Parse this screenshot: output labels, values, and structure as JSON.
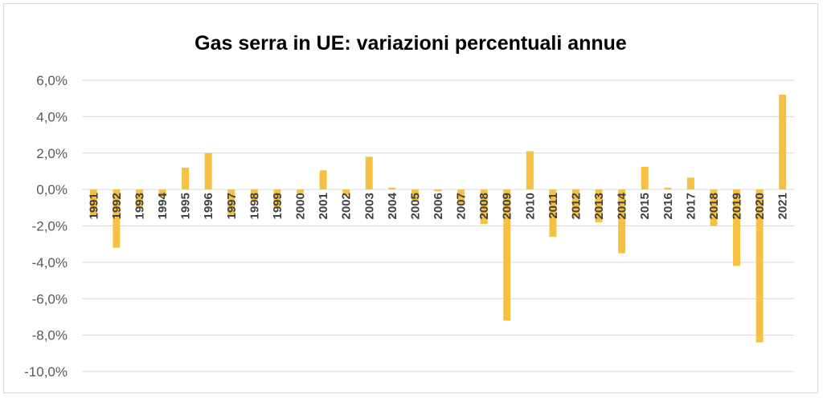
{
  "chart_data": {
    "type": "bar",
    "title": "Gas serra in UE: variazioni percentuali annue",
    "xlabel": "",
    "ylabel": "",
    "ylim": [
      -10,
      6
    ],
    "yticks": [
      "6,0%",
      "4,0%",
      "2,0%",
      "0,0%",
      "-2,0%",
      "-4,0%",
      "-6,0%",
      "-8,0%",
      "-10,0%"
    ],
    "ytick_values": [
      6,
      4,
      2,
      0,
      -2,
      -4,
      -6,
      -8,
      -10
    ],
    "grid": true,
    "legend": "none",
    "bar_color": "#F6C142",
    "categories": [
      "1991",
      "1992",
      "1993",
      "1994",
      "1995",
      "1996",
      "1997",
      "1998",
      "1999",
      "2000",
      "2001",
      "2002",
      "2003",
      "2004",
      "2005",
      "2006",
      "2007",
      "2008",
      "2009",
      "2010",
      "2011",
      "2012",
      "2013",
      "2014",
      "2015",
      "2016",
      "2017",
      "2018",
      "2019",
      "2020",
      "2021"
    ],
    "values": [
      -1.4,
      -3.2,
      -1.0,
      -0.4,
      1.2,
      2.0,
      -1.4,
      -0.6,
      -1.0,
      -0.2,
      1.05,
      -0.3,
      1.8,
      0.1,
      -0.6,
      -0.1,
      -0.8,
      -1.9,
      -7.2,
      2.1,
      -2.6,
      -1.5,
      -1.8,
      -3.5,
      1.25,
      0.1,
      0.65,
      -2.0,
      -4.2,
      -8.4,
      5.2
    ]
  }
}
